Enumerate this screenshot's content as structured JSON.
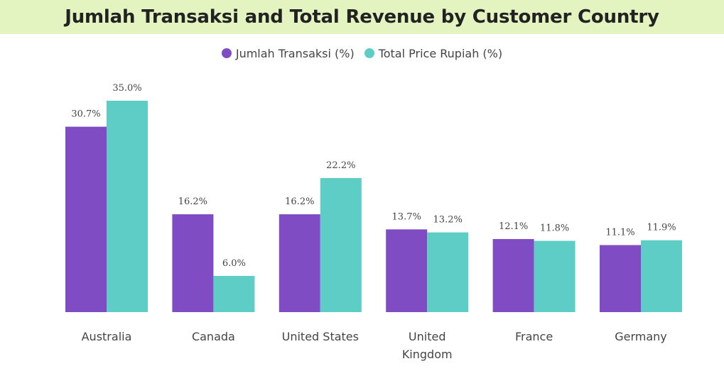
{
  "chart_data": {
    "type": "bar",
    "title": "Jumlah Transaksi and Total Revenue by Customer Country",
    "categories": [
      [
        "Australia"
      ],
      [
        "Canada"
      ],
      [
        "United States"
      ],
      [
        "United",
        "Kingdom"
      ],
      [
        "France"
      ],
      [
        "Germany"
      ]
    ],
    "series": [
      {
        "name": "Jumlah Transaksi (%)",
        "color": "#7f4cc4",
        "values": [
          30.7,
          16.2,
          16.2,
          13.7,
          12.1,
          11.1
        ],
        "labels": [
          "30.7%",
          "16.2%",
          "16.2%",
          "13.7%",
          "12.1%",
          "11.1%"
        ]
      },
      {
        "name": "Total Price Rupiah (%)",
        "color": "#5ecdc6",
        "values": [
          35.0,
          6.0,
          22.2,
          13.2,
          11.8,
          11.9
        ],
        "labels": [
          "35.0%",
          "6.0%",
          "22.2%",
          "13.2%",
          "11.8%",
          "11.9%"
        ]
      }
    ],
    "ylim": [
      0,
      35.0
    ],
    "legend_position": "top-center",
    "grid": false
  }
}
